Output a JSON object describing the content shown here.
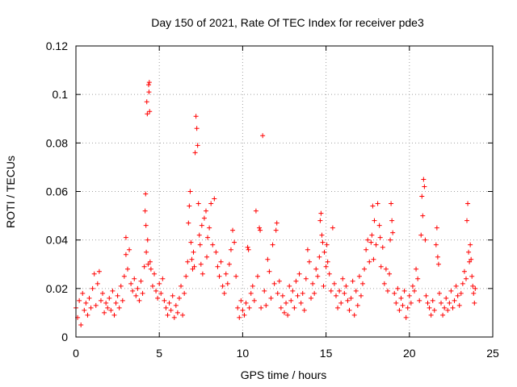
{
  "chart_data": {
    "type": "scatter",
    "title": "Day 150 of 2021, Rate Of TEC Index for receiver pde3",
    "xlabel": "GPS time / hours",
    "ylabel": "ROTI / TECUs",
    "xlim": [
      0,
      25
    ],
    "ylim": [
      0,
      0.12
    ],
    "x_ticks": [
      0,
      5,
      10,
      15,
      20,
      25
    ],
    "x_tick_labels": [
      "0",
      "5",
      "10",
      "15",
      "20",
      "25"
    ],
    "y_ticks": [
      0,
      0.02,
      0.04,
      0.06,
      0.08,
      0.1,
      0.12
    ],
    "y_tick_labels": [
      "0",
      "0.02",
      "0.04",
      "0.06",
      "0.08",
      "0.1",
      "0.12"
    ],
    "grid": true,
    "marker": "+",
    "colors": {
      "series": "#ff0000",
      "grid": "#a0a0a0",
      "axes": "#000000"
    },
    "series": [
      {
        "points": [
          [
            0.0,
            0.012
          ],
          [
            0.1,
            0.008
          ],
          [
            0.2,
            0.015
          ],
          [
            0.3,
            0.005
          ],
          [
            0.4,
            0.018
          ],
          [
            0.5,
            0.011
          ],
          [
            0.6,
            0.014
          ],
          [
            0.7,
            0.009
          ],
          [
            0.8,
            0.016
          ],
          [
            0.9,
            0.012
          ],
          [
            1.0,
            0.02
          ],
          [
            1.1,
            0.026
          ],
          [
            1.2,
            0.013
          ],
          [
            1.3,
            0.022
          ],
          [
            1.4,
            0.027
          ],
          [
            1.5,
            0.015
          ],
          [
            1.6,
            0.018
          ],
          [
            1.7,
            0.01
          ],
          [
            1.8,
            0.014
          ],
          [
            1.9,
            0.012
          ],
          [
            2.0,
            0.016
          ],
          [
            2.1,
            0.011
          ],
          [
            2.2,
            0.019
          ],
          [
            2.3,
            0.009
          ],
          [
            2.4,
            0.014
          ],
          [
            2.5,
            0.017
          ],
          [
            2.6,
            0.012
          ],
          [
            2.7,
            0.021
          ],
          [
            2.8,
            0.015
          ],
          [
            2.9,
            0.025
          ],
          [
            3.0,
            0.034
          ],
          [
            3.0,
            0.041
          ],
          [
            3.1,
            0.028
          ],
          [
            3.2,
            0.036
          ],
          [
            3.3,
            0.022
          ],
          [
            3.4,
            0.019
          ],
          [
            3.5,
            0.024
          ],
          [
            3.6,
            0.017
          ],
          [
            3.7,
            0.02
          ],
          [
            3.8,
            0.015
          ],
          [
            3.9,
            0.023
          ],
          [
            4.0,
            0.018
          ],
          [
            4.1,
            0.029
          ],
          [
            4.15,
            0.052
          ],
          [
            4.18,
            0.059
          ],
          [
            4.2,
            0.046
          ],
          [
            4.22,
            0.035
          ],
          [
            4.25,
            0.097
          ],
          [
            4.28,
            0.092
          ],
          [
            4.3,
            0.04
          ],
          [
            4.33,
            0.03
          ],
          [
            4.36,
            0.104
          ],
          [
            4.38,
            0.101
          ],
          [
            4.4,
            0.105
          ],
          [
            4.42,
            0.093
          ],
          [
            4.45,
            0.031
          ],
          [
            4.5,
            0.028
          ],
          [
            4.6,
            0.021
          ],
          [
            4.7,
            0.026
          ],
          [
            4.8,
            0.019
          ],
          [
            4.9,
            0.016
          ],
          [
            5.0,
            0.022
          ],
          [
            5.1,
            0.018
          ],
          [
            5.2,
            0.024
          ],
          [
            5.3,
            0.015
          ],
          [
            5.4,
            0.012
          ],
          [
            5.5,
            0.009
          ],
          [
            5.6,
            0.014
          ],
          [
            5.7,
            0.011
          ],
          [
            5.8,
            0.017
          ],
          [
            5.9,
            0.008
          ],
          [
            6.0,
            0.013
          ],
          [
            6.1,
            0.01
          ],
          [
            6.2,
            0.016
          ],
          [
            6.3,
            0.021
          ],
          [
            6.4,
            0.009
          ],
          [
            6.5,
            0.018
          ],
          [
            6.6,
            0.025
          ],
          [
            6.7,
            0.031
          ],
          [
            6.75,
            0.047
          ],
          [
            6.8,
            0.054
          ],
          [
            6.85,
            0.06
          ],
          [
            6.9,
            0.039
          ],
          [
            6.95,
            0.032
          ],
          [
            7.0,
            0.028
          ],
          [
            7.05,
            0.035
          ],
          [
            7.1,
            0.029
          ],
          [
            7.15,
            0.076
          ],
          [
            7.2,
            0.091
          ],
          [
            7.25,
            0.086
          ],
          [
            7.3,
            0.079
          ],
          [
            7.35,
            0.055
          ],
          [
            7.4,
            0.042
          ],
          [
            7.45,
            0.038
          ],
          [
            7.5,
            0.03
          ],
          [
            7.55,
            0.046
          ],
          [
            7.6,
            0.026
          ],
          [
            7.7,
            0.049
          ],
          [
            7.8,
            0.052
          ],
          [
            7.85,
            0.033
          ],
          [
            7.9,
            0.041
          ],
          [
            8.0,
            0.045
          ],
          [
            8.1,
            0.055
          ],
          [
            8.2,
            0.038
          ],
          [
            8.3,
            0.057
          ],
          [
            8.4,
            0.035
          ],
          [
            8.5,
            0.029
          ],
          [
            8.6,
            0.025
          ],
          [
            8.7,
            0.031
          ],
          [
            8.8,
            0.021
          ],
          [
            8.9,
            0.018
          ],
          [
            9.0,
            0.026
          ],
          [
            9.1,
            0.022
          ],
          [
            9.2,
            0.03
          ],
          [
            9.3,
            0.036
          ],
          [
            9.4,
            0.044
          ],
          [
            9.5,
            0.039
          ],
          [
            9.6,
            0.025
          ],
          [
            9.7,
            0.012
          ],
          [
            9.8,
            0.008
          ],
          [
            9.9,
            0.015
          ],
          [
            10.0,
            0.011
          ],
          [
            10.1,
            0.009
          ],
          [
            10.2,
            0.014
          ],
          [
            10.3,
            0.037
          ],
          [
            10.35,
            0.036
          ],
          [
            10.4,
            0.012
          ],
          [
            10.5,
            0.018
          ],
          [
            10.6,
            0.021
          ],
          [
            10.7,
            0.015
          ],
          [
            10.8,
            0.052
          ],
          [
            10.9,
            0.025
          ],
          [
            11.0,
            0.045
          ],
          [
            11.05,
            0.044
          ],
          [
            11.1,
            0.012
          ],
          [
            11.2,
            0.083
          ],
          [
            11.3,
            0.019
          ],
          [
            11.4,
            0.013
          ],
          [
            11.5,
            0.032
          ],
          [
            11.6,
            0.027
          ],
          [
            11.7,
            0.016
          ],
          [
            11.8,
            0.038
          ],
          [
            11.9,
            0.022
          ],
          [
            12.0,
            0.044
          ],
          [
            12.05,
            0.047
          ],
          [
            12.1,
            0.018
          ],
          [
            12.2,
            0.023
          ],
          [
            12.3,
            0.012
          ],
          [
            12.4,
            0.017
          ],
          [
            12.5,
            0.01
          ],
          [
            12.6,
            0.014
          ],
          [
            12.7,
            0.009
          ],
          [
            12.8,
            0.021
          ],
          [
            12.9,
            0.015
          ],
          [
            13.0,
            0.019
          ],
          [
            13.1,
            0.012
          ],
          [
            13.2,
            0.023
          ],
          [
            13.3,
            0.017
          ],
          [
            13.4,
            0.026
          ],
          [
            13.5,
            0.014
          ],
          [
            13.6,
            0.018
          ],
          [
            13.7,
            0.011
          ],
          [
            13.8,
            0.024
          ],
          [
            13.9,
            0.036
          ],
          [
            14.0,
            0.031
          ],
          [
            14.1,
            0.016
          ],
          [
            14.2,
            0.022
          ],
          [
            14.3,
            0.018
          ],
          [
            14.4,
            0.028
          ],
          [
            14.5,
            0.025
          ],
          [
            14.6,
            0.033
          ],
          [
            14.65,
            0.048
          ],
          [
            14.7,
            0.051
          ],
          [
            14.75,
            0.042
          ],
          [
            14.8,
            0.039
          ],
          [
            14.85,
            0.021
          ],
          [
            14.9,
            0.035
          ],
          [
            15.0,
            0.029
          ],
          [
            15.05,
            0.038
          ],
          [
            15.1,
            0.031
          ],
          [
            15.2,
            0.026
          ],
          [
            15.3,
            0.019
          ],
          [
            15.4,
            0.045
          ],
          [
            15.5,
            0.022
          ],
          [
            15.6,
            0.017
          ],
          [
            15.7,
            0.012
          ],
          [
            15.8,
            0.019
          ],
          [
            15.9,
            0.014
          ],
          [
            16.0,
            0.024
          ],
          [
            16.1,
            0.018
          ],
          [
            16.2,
            0.021
          ],
          [
            16.3,
            0.015
          ],
          [
            16.4,
            0.011
          ],
          [
            16.5,
            0.016
          ],
          [
            16.6,
            0.023
          ],
          [
            16.7,
            0.009
          ],
          [
            16.8,
            0.019
          ],
          [
            16.9,
            0.013
          ],
          [
            17.0,
            0.025
          ],
          [
            17.1,
            0.017
          ],
          [
            17.2,
            0.022
          ],
          [
            17.3,
            0.028
          ],
          [
            17.4,
            0.036
          ],
          [
            17.5,
            0.04
          ],
          [
            17.6,
            0.031
          ],
          [
            17.7,
            0.039
          ],
          [
            17.75,
            0.042
          ],
          [
            17.8,
            0.054
          ],
          [
            17.85,
            0.032
          ],
          [
            17.9,
            0.048
          ],
          [
            18.0,
            0.038
          ],
          [
            18.1,
            0.055
          ],
          [
            18.2,
            0.046
          ],
          [
            18.25,
            0.041
          ],
          [
            18.3,
            0.029
          ],
          [
            18.4,
            0.037
          ],
          [
            18.5,
            0.022
          ],
          [
            18.6,
            0.028
          ],
          [
            18.7,
            0.019
          ],
          [
            18.8,
            0.026
          ],
          [
            18.85,
            0.04
          ],
          [
            18.9,
            0.055
          ],
          [
            18.95,
            0.048
          ],
          [
            19.0,
            0.043
          ],
          [
            19.1,
            0.018
          ],
          [
            19.2,
            0.014
          ],
          [
            19.3,
            0.02
          ],
          [
            19.4,
            0.011
          ],
          [
            19.5,
            0.016
          ],
          [
            19.6,
            0.013
          ],
          [
            19.7,
            0.019
          ],
          [
            19.8,
            0.008
          ],
          [
            19.9,
            0.012
          ],
          [
            20.0,
            0.017
          ],
          [
            20.1,
            0.014
          ],
          [
            20.2,
            0.021
          ],
          [
            20.3,
            0.019
          ],
          [
            20.4,
            0.028
          ],
          [
            20.5,
            0.024
          ],
          [
            20.6,
            0.015
          ],
          [
            20.7,
            0.042
          ],
          [
            20.75,
            0.058
          ],
          [
            20.8,
            0.05
          ],
          [
            20.85,
            0.065
          ],
          [
            20.9,
            0.062
          ],
          [
            20.95,
            0.04
          ],
          [
            21.0,
            0.017
          ],
          [
            21.1,
            0.014
          ],
          [
            21.2,
            0.012
          ],
          [
            21.3,
            0.009
          ],
          [
            21.4,
            0.015
          ],
          [
            21.5,
            0.011
          ],
          [
            21.6,
            0.038
          ],
          [
            21.65,
            0.045
          ],
          [
            21.7,
            0.033
          ],
          [
            21.75,
            0.03
          ],
          [
            21.8,
            0.018
          ],
          [
            21.9,
            0.014
          ],
          [
            22.0,
            0.009
          ],
          [
            22.1,
            0.012
          ],
          [
            22.2,
            0.016
          ],
          [
            22.3,
            0.011
          ],
          [
            22.4,
            0.014
          ],
          [
            22.5,
            0.019
          ],
          [
            22.6,
            0.012
          ],
          [
            22.7,
            0.015
          ],
          [
            22.8,
            0.021
          ],
          [
            22.9,
            0.017
          ],
          [
            23.0,
            0.013
          ],
          [
            23.1,
            0.018
          ],
          [
            23.2,
            0.022
          ],
          [
            23.3,
            0.027
          ],
          [
            23.4,
            0.024
          ],
          [
            23.45,
            0.048
          ],
          [
            23.5,
            0.055
          ],
          [
            23.55,
            0.035
          ],
          [
            23.6,
            0.031
          ],
          [
            23.65,
            0.038
          ],
          [
            23.7,
            0.032
          ],
          [
            23.75,
            0.025
          ],
          [
            23.8,
            0.021
          ],
          [
            23.85,
            0.018
          ],
          [
            23.9,
            0.014
          ],
          [
            23.95,
            0.02
          ]
        ]
      }
    ]
  }
}
